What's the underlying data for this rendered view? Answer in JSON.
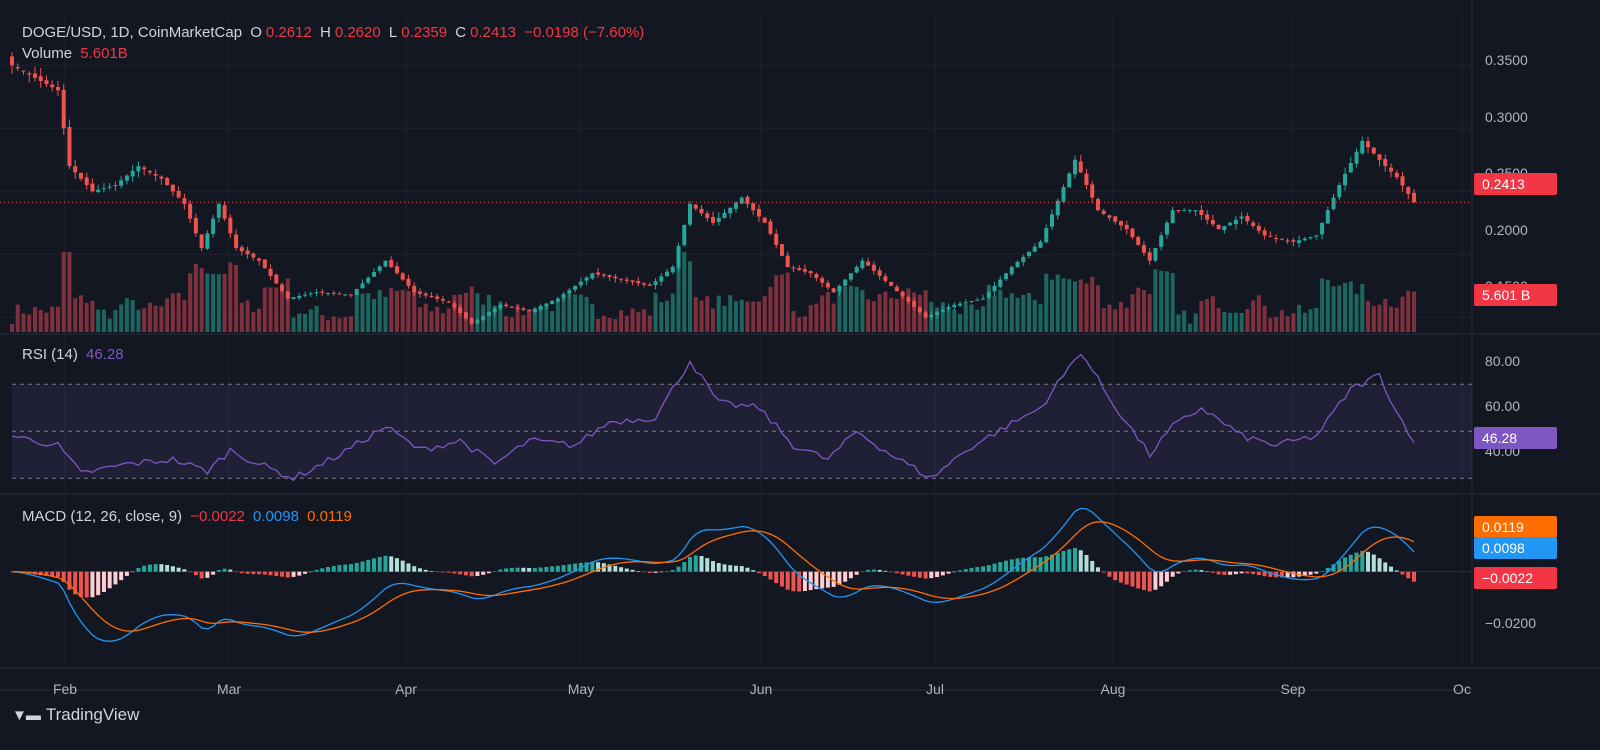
{
  "header": {
    "symbol": "DOGE/USD, 1D, CoinMarketCap",
    "open_label": "O",
    "open": "0.2612",
    "high_label": "H",
    "high": "0.2620",
    "low_label": "L",
    "low": "0.2359",
    "close_label": "C",
    "close": "0.2413",
    "change": "−0.0198 (−7.60%)",
    "volume_label": "Volume",
    "volume": "5.601B"
  },
  "rsi": {
    "label": "RSI (14)",
    "value": "46.28"
  },
  "macd": {
    "label": "MACD (12, 26, close, 9)",
    "hist": "−0.0022",
    "macd": "0.0098",
    "signal": "0.0119"
  },
  "tags": {
    "price": "0.2413",
    "volume": "5.601 B",
    "rsi": "46.28",
    "signal": "0.0119",
    "macd": "0.0098",
    "hist": "−0.0022"
  },
  "price_axis": [
    "0.3500",
    "0.3000",
    "0.2500",
    "0.2000",
    "0.1500"
  ],
  "rsi_axis": [
    "80.00",
    "60.00",
    "40.00"
  ],
  "macd_axis": [
    "−0.0200"
  ],
  "months": [
    "Feb",
    "Mar",
    "Apr",
    "May",
    "Jun",
    "Jul",
    "Aug",
    "Sep",
    "Oc"
  ],
  "branding": {
    "name": "TradingView"
  },
  "colors": {
    "up": "#26a69a",
    "down": "#ef5350",
    "rsi": "#7e57c2",
    "macd": "#2196f3",
    "signal": "#ff6d00",
    "bg": "#131722"
  },
  "chart_data": {
    "type": "candlestick",
    "title": "DOGE/USD, 1D, CoinMarketCap",
    "x_range": [
      "2024-01-23",
      "2024-09-23"
    ],
    "price_range": [
      0.14,
      0.37
    ],
    "close_anchors": [
      [
        "2024-01-23",
        0.35
      ],
      [
        "2024-01-27",
        0.34
      ],
      [
        "2024-01-31",
        0.33
      ],
      [
        "2024-02-02",
        0.27
      ],
      [
        "2024-02-06",
        0.25
      ],
      [
        "2024-02-10",
        0.255
      ],
      [
        "2024-02-14",
        0.27
      ],
      [
        "2024-02-18",
        0.26
      ],
      [
        "2024-02-22",
        0.24
      ],
      [
        "2024-02-25",
        0.205
      ],
      [
        "2024-02-28",
        0.24
      ],
      [
        "2024-03-02",
        0.205
      ],
      [
        "2024-03-06",
        0.195
      ],
      [
        "2024-03-11",
        0.165
      ],
      [
        "2024-03-16",
        0.17
      ],
      [
        "2024-03-22",
        0.168
      ],
      [
        "2024-03-28",
        0.195
      ],
      [
        "2024-04-02",
        0.17
      ],
      [
        "2024-04-08",
        0.162
      ],
      [
        "2024-04-12",
        0.145
      ],
      [
        "2024-04-17",
        0.16
      ],
      [
        "2024-04-22",
        0.155
      ],
      [
        "2024-04-27",
        0.165
      ],
      [
        "2024-05-03",
        0.185
      ],
      [
        "2024-05-08",
        0.18
      ],
      [
        "2024-05-13",
        0.175
      ],
      [
        "2024-05-17",
        0.19
      ],
      [
        "2024-05-20",
        0.24
      ],
      [
        "2024-05-24",
        0.225
      ],
      [
        "2024-05-29",
        0.245
      ],
      [
        "2024-06-02",
        0.225
      ],
      [
        "2024-06-06",
        0.19
      ],
      [
        "2024-06-10",
        0.185
      ],
      [
        "2024-06-14",
        0.17
      ],
      [
        "2024-06-19",
        0.195
      ],
      [
        "2024-06-24",
        0.175
      ],
      [
        "2024-06-30",
        0.15
      ],
      [
        "2024-07-05",
        0.16
      ],
      [
        "2024-07-10",
        0.165
      ],
      [
        "2024-07-15",
        0.19
      ],
      [
        "2024-07-20",
        0.21
      ],
      [
        "2024-07-26",
        0.275
      ],
      [
        "2024-07-30",
        0.235
      ],
      [
        "2024-08-04",
        0.22
      ],
      [
        "2024-08-08",
        0.195
      ],
      [
        "2024-08-12",
        0.235
      ],
      [
        "2024-08-16",
        0.235
      ],
      [
        "2024-08-20",
        0.22
      ],
      [
        "2024-08-24",
        0.23
      ],
      [
        "2024-08-28",
        0.215
      ],
      [
        "2024-09-02",
        0.21
      ],
      [
        "2024-09-06",
        0.215
      ],
      [
        "2024-09-10",
        0.255
      ],
      [
        "2024-09-14",
        0.29
      ],
      [
        "2024-09-18",
        0.27
      ],
      [
        "2024-09-20",
        0.2612
      ],
      [
        "2024-09-23",
        0.2413
      ]
    ],
    "rsi_anchors": [
      [
        "2024-01-23",
        48
      ],
      [
        "2024-01-31",
        44
      ],
      [
        "2024-02-04",
        32
      ],
      [
        "2024-02-12",
        36
      ],
      [
        "2024-02-20",
        38
      ],
      [
        "2024-02-26",
        33
      ],
      [
        "2024-03-01",
        42
      ],
      [
        "2024-03-06",
        36
      ],
      [
        "2024-03-12",
        30
      ],
      [
        "2024-03-20",
        40
      ],
      [
        "2024-03-28",
        52
      ],
      [
        "2024-04-03",
        42
      ],
      [
        "2024-04-10",
        46
      ],
      [
        "2024-04-16",
        36
      ],
      [
        "2024-04-22",
        46
      ],
      [
        "2024-04-30",
        44
      ],
      [
        "2024-05-06",
        54
      ],
      [
        "2024-05-14",
        56
      ],
      [
        "2024-05-20",
        80
      ],
      [
        "2024-05-25",
        62
      ],
      [
        "2024-06-01",
        60
      ],
      [
        "2024-06-07",
        44
      ],
      [
        "2024-06-13",
        38
      ],
      [
        "2024-06-18",
        50
      ],
      [
        "2024-06-24",
        40
      ],
      [
        "2024-07-01",
        30
      ],
      [
        "2024-07-07",
        42
      ],
      [
        "2024-07-14",
        52
      ],
      [
        "2024-07-20",
        60
      ],
      [
        "2024-07-27",
        84
      ],
      [
        "2024-08-01",
        64
      ],
      [
        "2024-08-08",
        40
      ],
      [
        "2024-08-12",
        52
      ],
      [
        "2024-08-17",
        60
      ],
      [
        "2024-08-24",
        48
      ],
      [
        "2024-08-30",
        44
      ],
      [
        "2024-09-06",
        48
      ],
      [
        "2024-09-12",
        68
      ],
      [
        "2024-09-17",
        74
      ],
      [
        "2024-09-20",
        58
      ],
      [
        "2024-09-23",
        46.28
      ]
    ],
    "rsi_bands": {
      "upper": 70,
      "middle": 50,
      "lower": 30
    },
    "rsi_range": [
      25,
      88
    ],
    "macd_range": [
      -0.035,
      0.025
    ],
    "last_values": {
      "close": 0.2413,
      "volume": "5.601B",
      "rsi": 46.28,
      "macd": 0.0098,
      "signal": 0.0119,
      "histogram": -0.0022
    }
  }
}
